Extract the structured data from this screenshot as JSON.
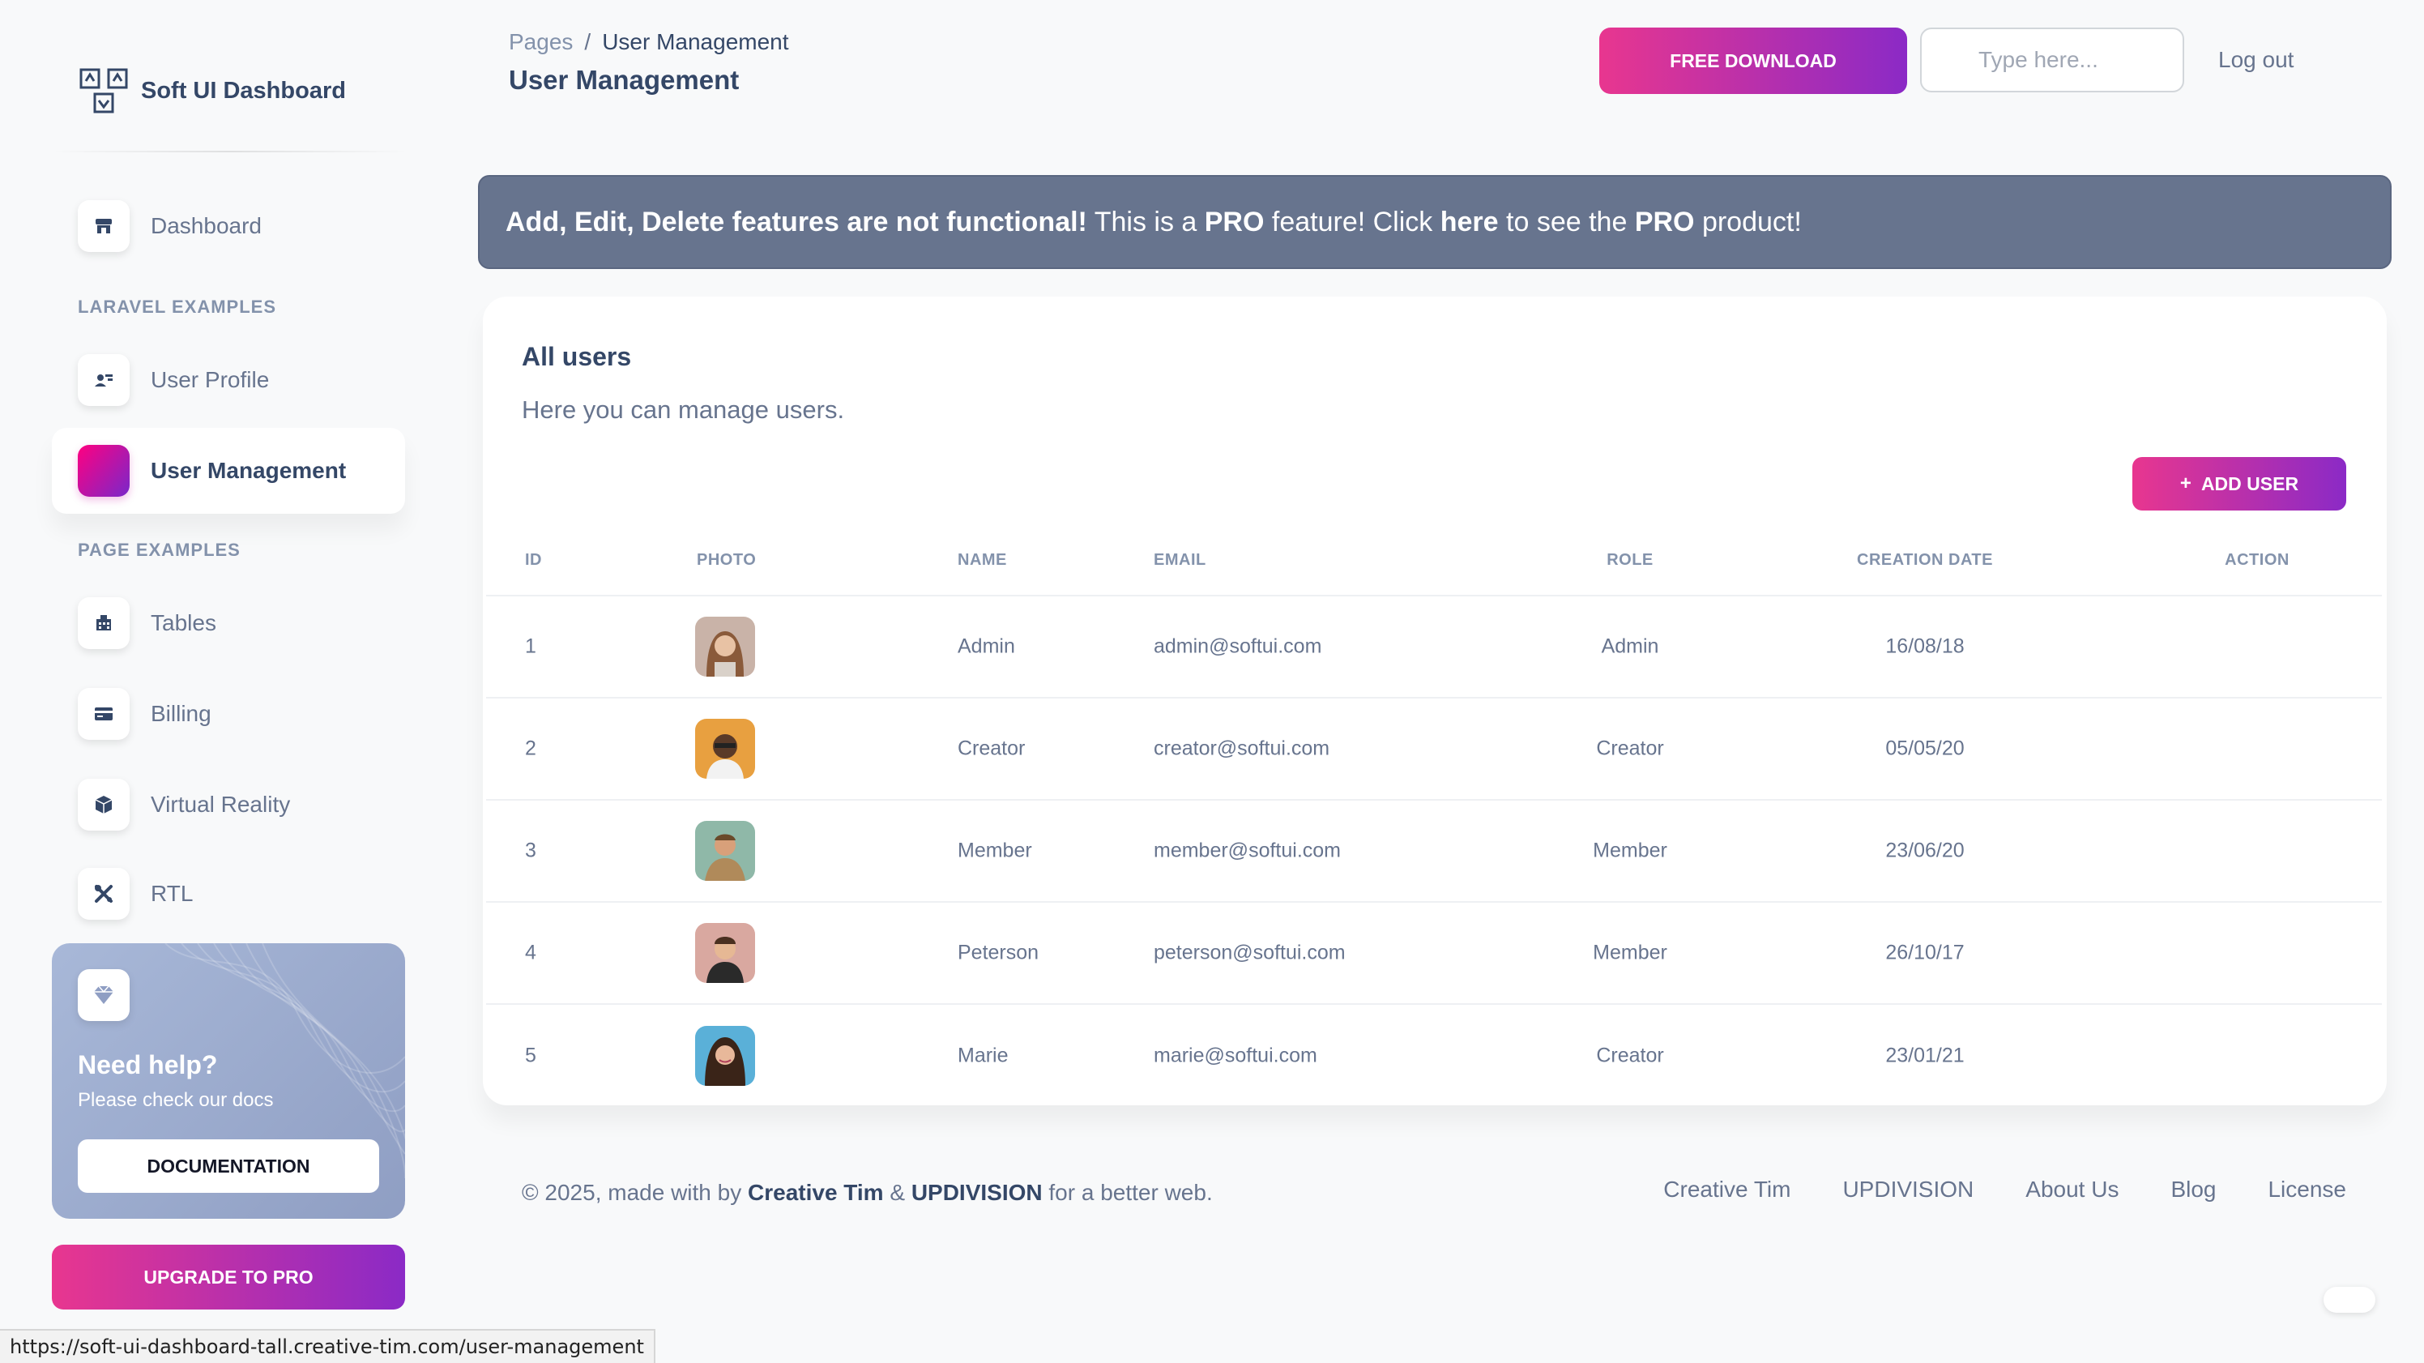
{
  "brand": {
    "name": "Soft UI Dashboard"
  },
  "sidebar": {
    "dashboard": "Dashboard",
    "laravel_heading": "LARAVEL EXAMPLES",
    "user_profile": "User Profile",
    "user_management": "User Management",
    "page_heading": "PAGE EXAMPLES",
    "tables": "Tables",
    "billing": "Billing",
    "virtual_reality": "Virtual Reality",
    "rtl": "RTL",
    "help": {
      "title": "Need help?",
      "subtitle": "Please check our docs",
      "button": "DOCUMENTATION"
    },
    "upgrade": "UPGRADE TO PRO"
  },
  "header": {
    "breadcrumb_root": "Pages",
    "breadcrumb_sep": "/",
    "breadcrumb_current": "User Management",
    "title": "User Management",
    "free_download": "FREE DOWNLOAD",
    "search_placeholder": "Type here...",
    "logout": "Log out"
  },
  "alert": {
    "part1": "Add, Edit, Delete features are not functional!",
    "part2": " This is a ",
    "part3": "PRO",
    "part4": " feature! Click ",
    "part5": "here",
    "part6": " to see the ",
    "part7": "PRO",
    "part8": " product!"
  },
  "card": {
    "title": "All users",
    "subtitle": "Here you can manage users.",
    "add_button": "ADD USER",
    "add_plus": "+"
  },
  "table": {
    "headers": [
      "ID",
      "PHOTO",
      "NAME",
      "EMAIL",
      "ROLE",
      "CREATION DATE",
      "ACTION"
    ],
    "rows": [
      {
        "id": "1",
        "name": "Admin",
        "email": "admin@softui.com",
        "role": "Admin",
        "date": "16/08/18"
      },
      {
        "id": "2",
        "name": "Creator",
        "email": "creator@softui.com",
        "role": "Creator",
        "date": "05/05/20"
      },
      {
        "id": "3",
        "name": "Member",
        "email": "member@softui.com",
        "role": "Member",
        "date": "23/06/20"
      },
      {
        "id": "4",
        "name": "Peterson",
        "email": "peterson@softui.com",
        "role": "Member",
        "date": "26/10/17"
      },
      {
        "id": "5",
        "name": "Marie",
        "email": "marie@softui.com",
        "role": "Creator",
        "date": "23/01/21"
      }
    ]
  },
  "footer": {
    "copy_prefix": "© 2025, made with by ",
    "creative_tim": "Creative Tim",
    "amp": " & ",
    "updivision": "UPDIVISION",
    "copy_suffix": " for a better web.",
    "links": [
      "Creative Tim",
      "UPDIVISION",
      "About Us",
      "Blog",
      "License"
    ]
  },
  "statusbar": {
    "url": "https://soft-ui-dashboard-tall.creative-tim.com/user-management"
  },
  "colors": {
    "accent_start": "#e8368f",
    "accent_end": "#8b2ac6",
    "alert_bg": "#67748e",
    "text_dark": "#344767",
    "text_muted": "#67748e"
  },
  "icons": [
    "dashboard-logo-icon",
    "shop-icon",
    "user-profile-icon",
    "tables-icon",
    "billing-icon",
    "cube-icon",
    "tools-icon",
    "diamond-icon"
  ]
}
